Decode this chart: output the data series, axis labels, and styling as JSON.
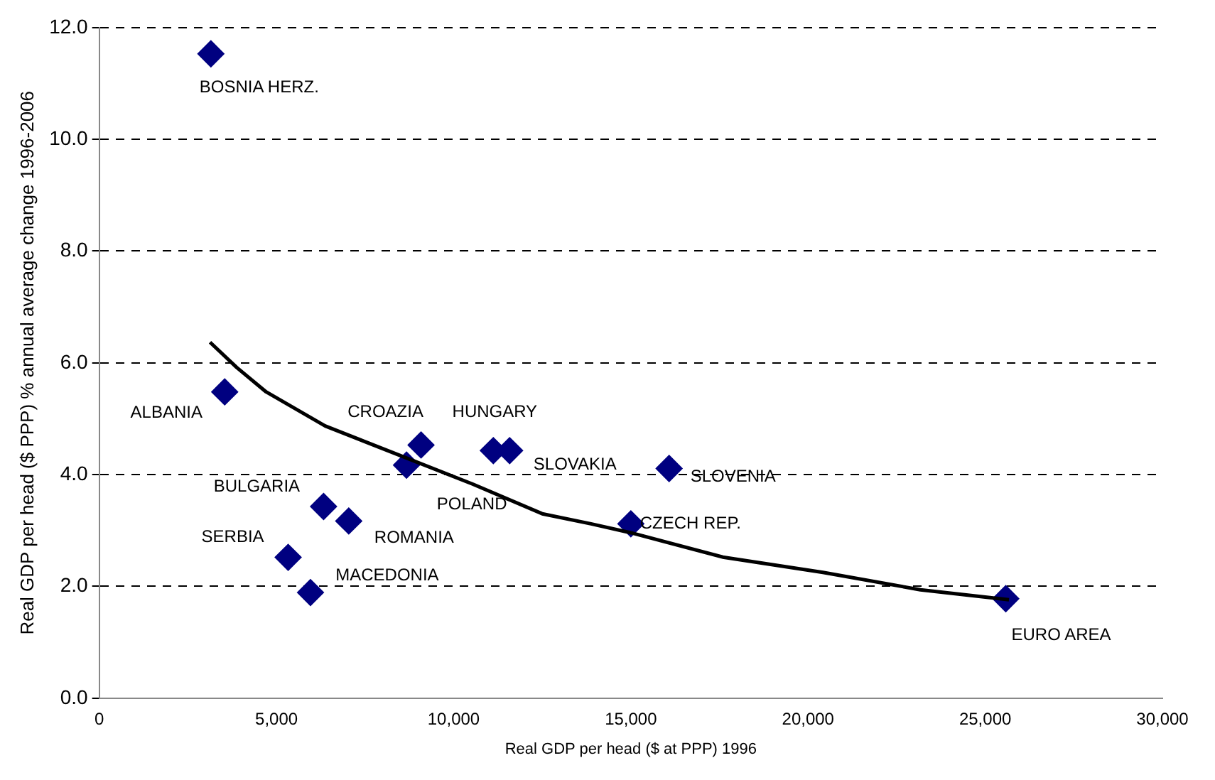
{
  "chart_data": {
    "type": "scatter",
    "xlabel": "Real GDP per head ($ at PPP) 1996",
    "ylabel": "Real GDP per head ($ PPP) % annual average change 1996-2006",
    "series": [
      {
        "type": "scatter",
        "color": "#000080",
        "marker": "diamond",
        "x": [
          3150,
          3540,
          6330,
          7040,
          5330,
          5960,
          9080,
          8670,
          11120,
          11580,
          16080,
          15000,
          25580
        ],
        "values": [
          11.53,
          5.48,
          3.43,
          3.17,
          2.52,
          1.89,
          4.53,
          4.17,
          4.43,
          4.43,
          4.11,
          3.12,
          1.78
        ]
      },
      {
        "type": "line",
        "color": "#000000",
        "marker": "none",
        "x": [
          3125,
          3875,
          4710,
          6375,
          8460,
          10540,
          12500,
          13875,
          15000,
          17625,
          20420,
          23170,
          25670
        ],
        "values": [
          6.37,
          5.92,
          5.48,
          4.87,
          4.35,
          3.83,
          3.3,
          3.12,
          2.96,
          2.52,
          2.25,
          1.94,
          1.76
        ]
      }
    ],
    "xlim": [
      0,
      30000
    ],
    "xticks": [
      {
        "value": 0,
        "label": "0"
      },
      {
        "value": 5000,
        "label": "5,000"
      },
      {
        "value": 10000,
        "label": "10,000"
      },
      {
        "value": 15000,
        "label": "15,000"
      },
      {
        "value": 20000,
        "label": "20,000"
      },
      {
        "value": 25000,
        "label": "25,000"
      },
      {
        "value": 30000,
        "label": "30,000"
      }
    ],
    "ylim": [
      0,
      12
    ],
    "yticks": [
      {
        "value": 0,
        "label": "0.0"
      },
      {
        "value": 2,
        "label": "2.0"
      },
      {
        "value": 4,
        "label": "4.0"
      },
      {
        "value": 6,
        "label": "6.0"
      },
      {
        "value": 8,
        "label": "8.0"
      },
      {
        "value": 10,
        "label": "10.0"
      },
      {
        "value": 12,
        "label": "12.0"
      }
    ],
    "grid": "y",
    "legend": false,
    "annotations": [
      {
        "text": "BOSNIA HERZ.",
        "x": 3150,
        "y": 11.53
      },
      {
        "text": "ALBANIA",
        "x": 3540,
        "y": 5.48
      },
      {
        "text": "CROAZIA",
        "x": 9080,
        "y": 4.53
      },
      {
        "text": "HUNGARY",
        "x": 11120,
        "y": 4.43
      },
      {
        "text": "SLOVAKIA",
        "x": 11580,
        "y": 4.43
      },
      {
        "text": "SLOVENIA",
        "x": 16080,
        "y": 4.11
      },
      {
        "text": "POLAND",
        "x": 8670,
        "y": 4.17
      },
      {
        "text": "BULGARIA",
        "x": 6330,
        "y": 3.43
      },
      {
        "text": "ROMANIA",
        "x": 7040,
        "y": 3.17
      },
      {
        "text": "SERBIA",
        "x": 5330,
        "y": 2.52
      },
      {
        "text": "MACEDONIA",
        "x": 5960,
        "y": 1.89
      },
      {
        "text": "CZECH REP.",
        "x": 15000,
        "y": 3.12
      },
      {
        "text": "EURO AREA",
        "x": 25580,
        "y": 1.78
      }
    ]
  }
}
